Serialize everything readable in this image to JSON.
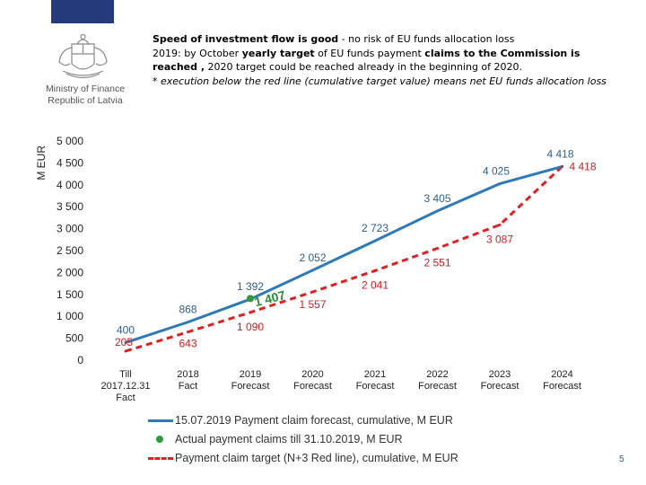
{
  "header": {
    "part1_bold": "Speed of investment flow is good",
    "part1_rest": " - no risk of EU funds allocation loss",
    "part2_pre": "2019: by October ",
    "part2_bold1": "yearly target",
    "part2_mid": " of EU funds payment ",
    "part2_bold2": "claims to the Commission is reached ,",
    "part2_rest": " 2020 target could be reached already in the beginning of 2020.",
    "note": "* execution below the red line (cumulative target value) means net EU funds allocation loss"
  },
  "ministry": {
    "line1": "Ministry of Finance",
    "line2": "Republic of Latvia"
  },
  "page_number": "5",
  "colors": {
    "blue": "#2e7ab8",
    "red": "#e02020",
    "green": "#2e9a3e",
    "flag": "#243a7a"
  },
  "chart_data": {
    "type": "line",
    "ylabel": "M EUR",
    "ylim": [
      0,
      5000
    ],
    "yticks": [
      0,
      500,
      1000,
      1500,
      2000,
      2500,
      3000,
      3500,
      4000,
      4500,
      5000
    ],
    "ytick_labels": [
      "0",
      "500",
      "1 000",
      "1 500",
      "2 000",
      "2 500",
      "3 000",
      "3 500",
      "4 000",
      "4 500",
      "5 000"
    ],
    "categories": [
      [
        "Till",
        "2017.12.31",
        "Fact"
      ],
      [
        "2018",
        "Fact"
      ],
      [
        "2019",
        "Forecast"
      ],
      [
        "2020",
        "Forecast"
      ],
      [
        "2021",
        "Forecast"
      ],
      [
        "2022",
        "Forecast"
      ],
      [
        "2023",
        "Forecast"
      ],
      [
        "2024",
        "Forecast"
      ]
    ],
    "series": [
      {
        "name": "15.07.2019 Payment claim forecast, cumulative, M EUR",
        "style": "solid",
        "color": "#2e7ab8",
        "values": [
          400,
          868,
          1392,
          2052,
          2723,
          3405,
          4025,
          4418
        ],
        "labels": [
          "400",
          "868",
          "1 392",
          "2 052",
          "2 723",
          "3 405",
          "4 025",
          "4 418"
        ]
      },
      {
        "name": "Payment claim target (N+3 Red line), cumulative, M EUR",
        "style": "dashed",
        "color": "#e02020",
        "values": [
          205,
          643,
          1090,
          1557,
          2041,
          2551,
          3087,
          4418
        ],
        "labels": [
          "205",
          "643",
          "1 090",
          "1 557",
          "2 041",
          "2 551",
          "3 087",
          "4 418"
        ]
      },
      {
        "name": "Actual payment claims till 31.10.2019, M EUR",
        "style": "marker",
        "color": "#2e9a3e",
        "points": [
          {
            "index": 2,
            "value": 1407,
            "label": "1 407"
          }
        ]
      }
    ]
  },
  "legend": [
    {
      "key": "blue",
      "label": "15.07.2019 Payment claim forecast, cumulative, M EUR"
    },
    {
      "key": "green",
      "label": "Actual payment claims till 31.10.2019, M EUR"
    },
    {
      "key": "red",
      "label": "Payment claim target (N+3 Red line), cumulative, M EUR"
    }
  ]
}
